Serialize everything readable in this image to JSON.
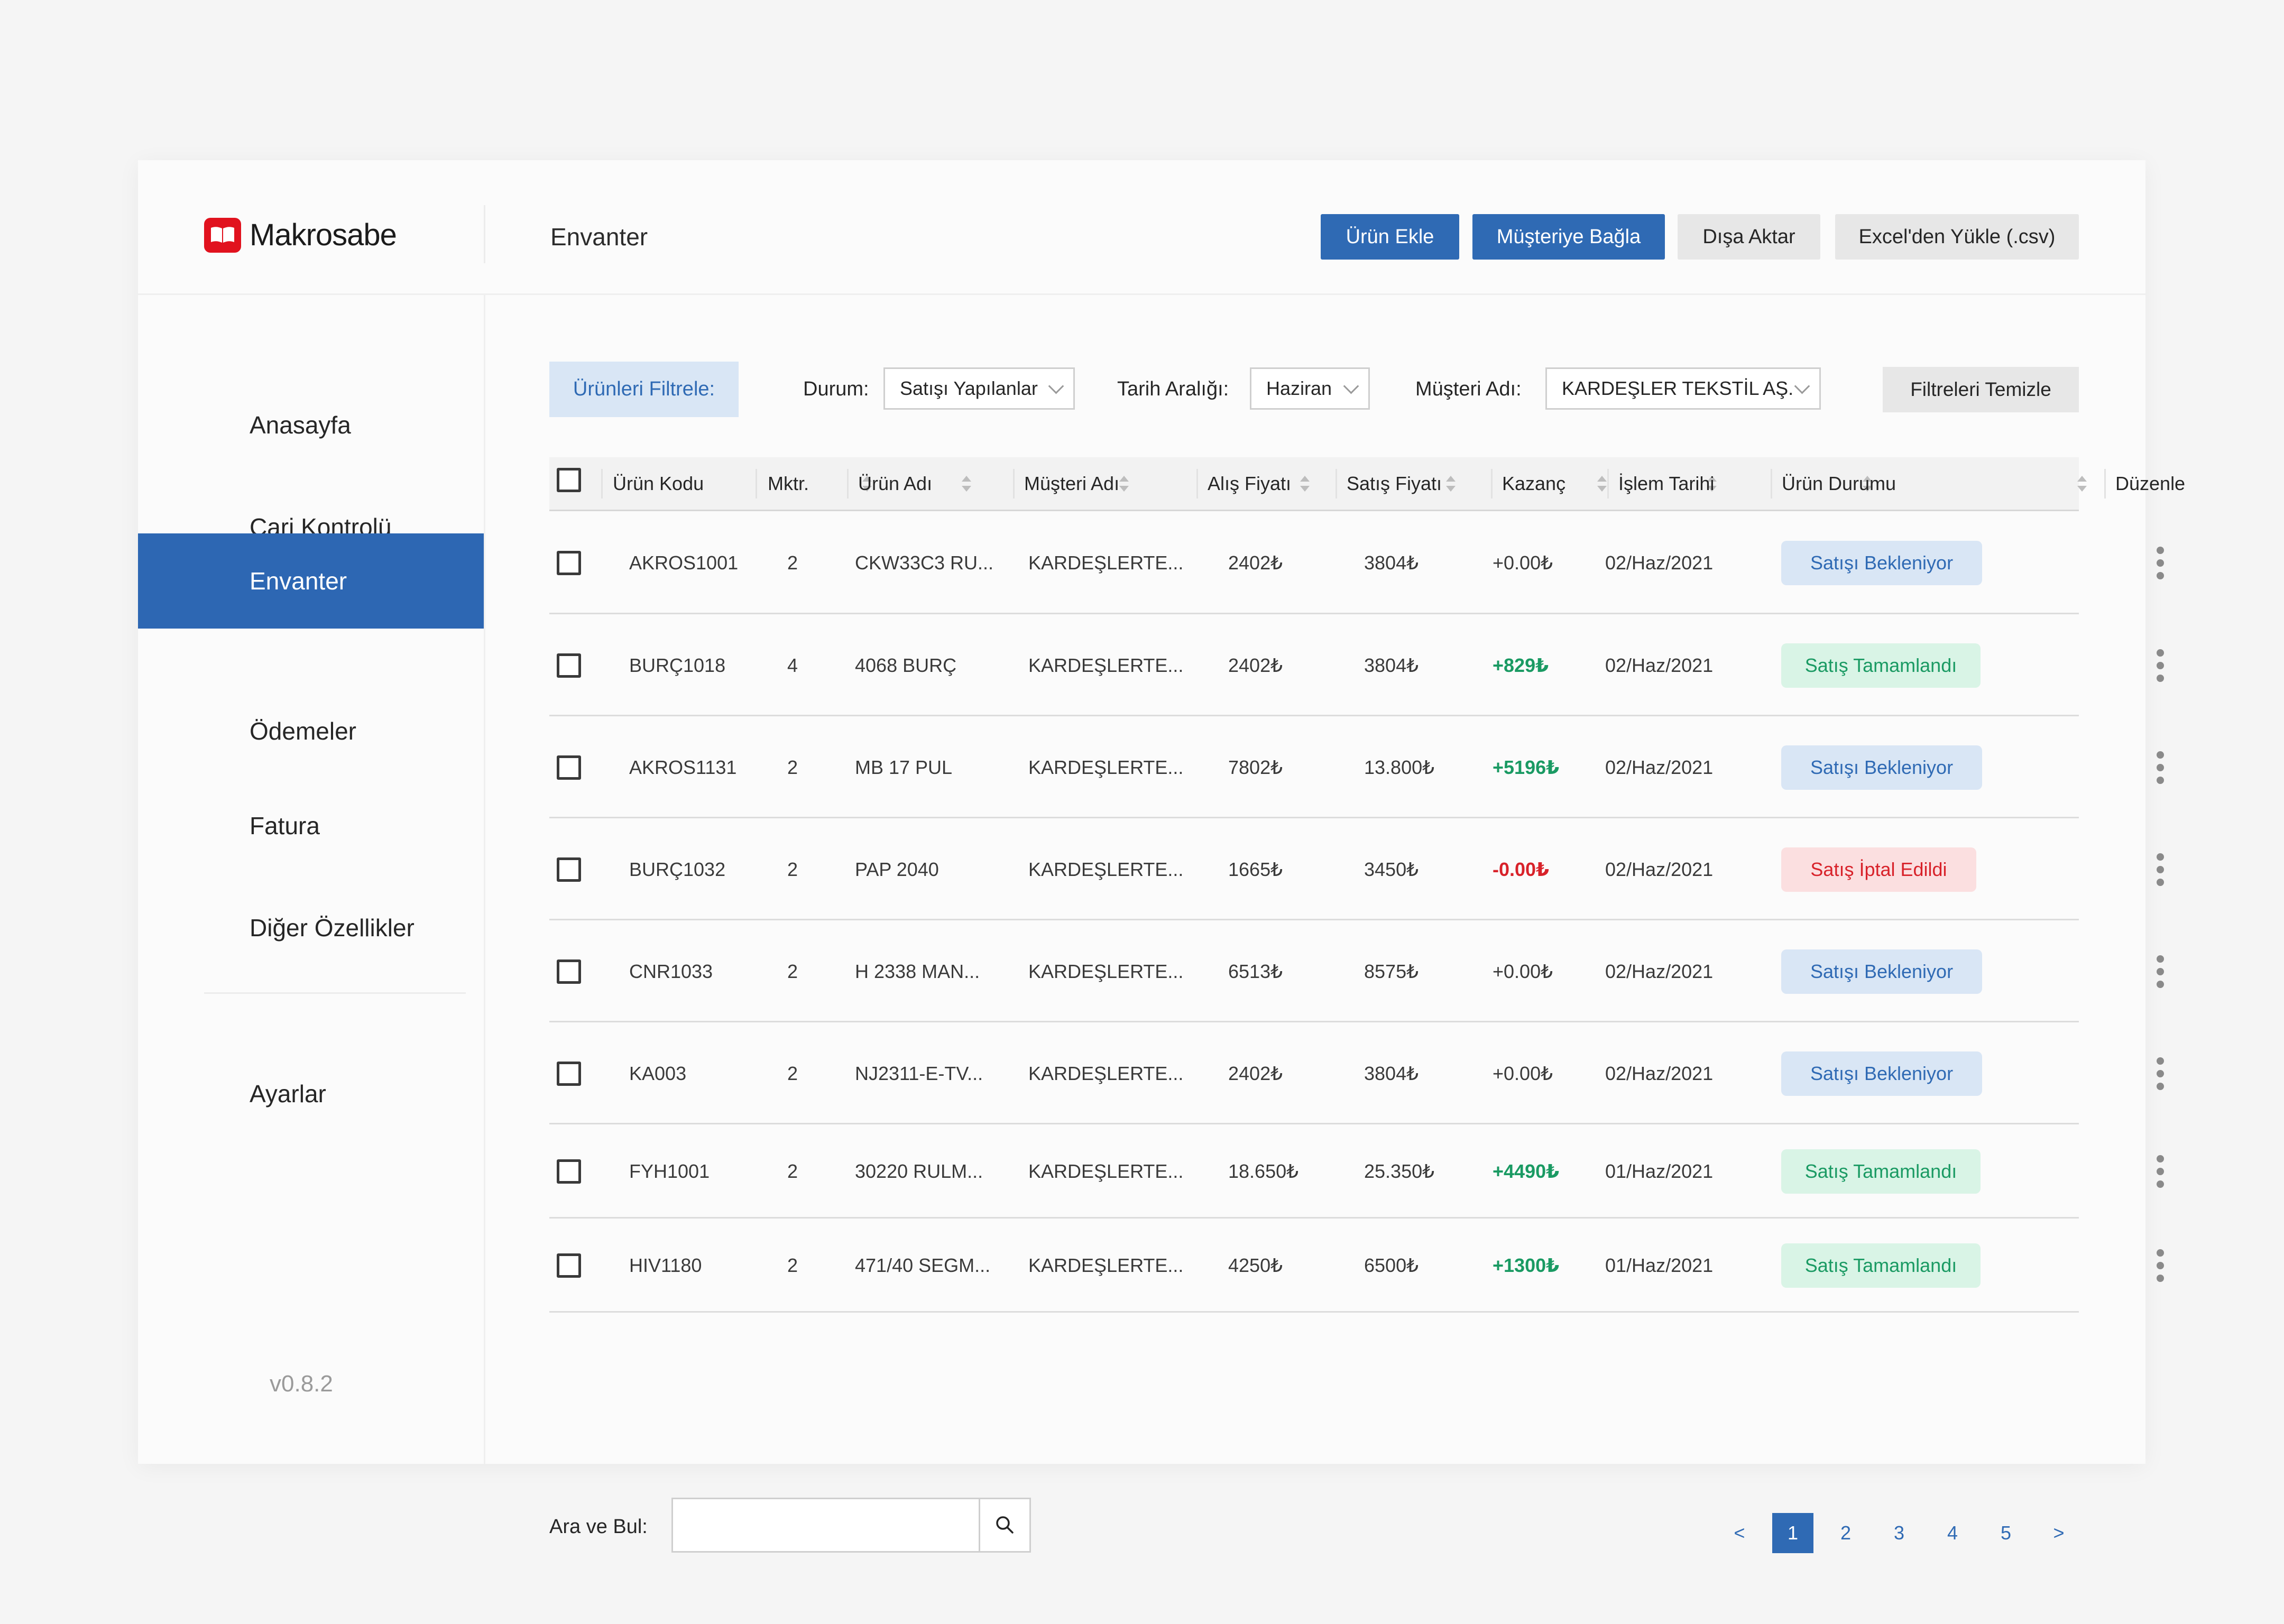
{
  "app": {
    "brand": "Makrosabe",
    "page_title": "Envanter",
    "version": "v0.8.2"
  },
  "header_actions": {
    "add_product": "Ürün Ekle",
    "link_customer": "Müşteriye Bağla",
    "export": "Dışa Aktar",
    "import_excel": "Excel'den Yükle (.csv)"
  },
  "sidebar": {
    "items": [
      {
        "label": "Anasayfa"
      },
      {
        "label": "Cari Kontrolü"
      },
      {
        "label": "Envanter",
        "active": true
      },
      {
        "label": "Ödemeler"
      },
      {
        "label": "Fatura"
      },
      {
        "label": "Diğer Özellikler"
      }
    ],
    "settings": "Ayarlar"
  },
  "filters": {
    "title": "Ürünleri Filtrele:",
    "status_label": "Durum:",
    "status_value": "Satışı Yapılanlar",
    "date_label": "Tarih Aralığı:",
    "date_value": "Haziran",
    "customer_label": "Müşteri Adı:",
    "customer_value": "KARDEŞLER TEKSTİL AŞ.",
    "clear": "Filtreleri Temizle"
  },
  "table": {
    "columns": [
      "Ürün Kodu",
      "Mktr.",
      "Ürün Adı",
      "Müşteri Adı",
      "Alış Fiyatı",
      "Satış Fiyatı",
      "Kazanç",
      "İşlem Tarihi",
      "Ürün Durumu",
      "Düzenle"
    ],
    "rows": [
      {
        "code": "AKROS1001",
        "qty": "2",
        "name": "CKW33C3 RU...",
        "customer": "KARDEŞLERTE...",
        "buy": "2402₺",
        "sell": "3804₺",
        "profit": "+0.00₺",
        "profit_type": "zero",
        "date": "02/Haz/2021",
        "status": "Satışı Bekleniyor",
        "status_type": "pending"
      },
      {
        "code": "BURÇ1018",
        "qty": "4",
        "name": "4068 BURÇ",
        "customer": "KARDEŞLERTE...",
        "buy": "2402₺",
        "sell": "3804₺",
        "profit": "+829₺",
        "profit_type": "pos",
        "date": "02/Haz/2021",
        "status": "Satış Tamamlandı",
        "status_type": "done"
      },
      {
        "code": "AKROS1131",
        "qty": "2",
        "name": "MB 17 PUL",
        "customer": "KARDEŞLERTE...",
        "buy": "7802₺",
        "sell": "13.800₺",
        "profit": "+5196₺",
        "profit_type": "pos",
        "date": "02/Haz/2021",
        "status": "Satışı Bekleniyor",
        "status_type": "pending"
      },
      {
        "code": "BURÇ1032",
        "qty": "2",
        "name": "PAP 2040",
        "customer": "KARDEŞLERTE...",
        "buy": "1665₺",
        "sell": "3450₺",
        "profit": "-0.00₺",
        "profit_type": "neg",
        "date": "02/Haz/2021",
        "status": "Satış İptal Edildi",
        "status_type": "cancel"
      },
      {
        "code": "CNR1033",
        "qty": "2",
        "name": "H 2338 MAN...",
        "customer": "KARDEŞLERTE...",
        "buy": "6513₺",
        "sell": "8575₺",
        "profit": "+0.00₺",
        "profit_type": "zero",
        "date": "02/Haz/2021",
        "status": "Satışı Bekleniyor",
        "status_type": "pending"
      },
      {
        "code": "KA003",
        "qty": "2",
        "name": "NJ2311-E-TV...",
        "customer": "KARDEŞLERTE...",
        "buy": "2402₺",
        "sell": "3804₺",
        "profit": "+0.00₺",
        "profit_type": "zero",
        "date": "02/Haz/2021",
        "status": "Satışı Bekleniyor",
        "status_type": "pending"
      },
      {
        "code": "FYH1001",
        "qty": "2",
        "name": "30220 RULM...",
        "customer": "KARDEŞLERTE...",
        "buy": "18.650₺",
        "sell": "25.350₺",
        "profit": "+4490₺",
        "profit_type": "pos",
        "date": "01/Haz/2021",
        "status": "Satış Tamamlandı",
        "status_type": "done"
      },
      {
        "code": "HIV1180",
        "qty": "2",
        "name": "471/40 SEGM...",
        "customer": "KARDEŞLERTE...",
        "buy": "4250₺",
        "sell": "6500₺",
        "profit": "+1300₺",
        "profit_type": "pos",
        "date": "01/Haz/2021",
        "status": "Satış Tamamlandı",
        "status_type": "done"
      }
    ]
  },
  "search": {
    "label": "Ara ve Bul:",
    "value": "",
    "placeholder": ""
  },
  "pagination": {
    "prev": "<",
    "next": ">",
    "pages": [
      "1",
      "2",
      "3",
      "4",
      "5"
    ],
    "current": "1"
  },
  "colors": {
    "accent": "#2f6ab4",
    "brand_red": "#e1121e",
    "positive": "#1a9a63",
    "negative": "#d8222a"
  }
}
